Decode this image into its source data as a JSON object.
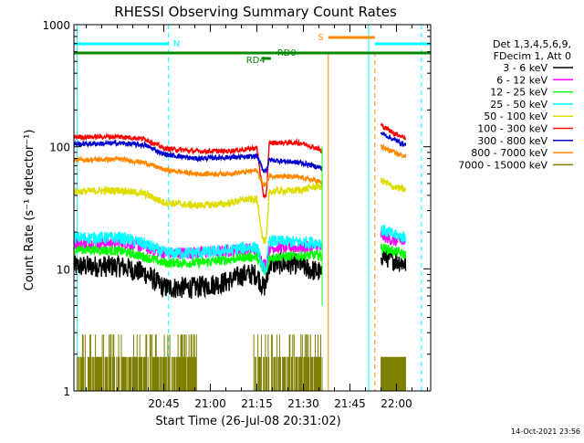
{
  "chart_data": {
    "type": "line",
    "title": "RHESSI Observing Summary Count Rates",
    "xlabel": "Start Time (26-Jul-08 20:31:02)",
    "ylabel": "Count Rate (s⁻¹ detector⁻¹)",
    "y_scale": "log",
    "ylim": [
      1,
      1000
    ],
    "xlim_minutes": [
      -15,
      100
    ],
    "x_ticks": [
      {
        "label": "20:45",
        "t": 13.97
      },
      {
        "label": "21:00",
        "t": 28.97
      },
      {
        "label": "21:15",
        "t": 43.97
      },
      {
        "label": "21:30",
        "t": 58.97
      },
      {
        "label": "21:45",
        "t": 73.97
      },
      {
        "label": "22:00",
        "t": 88.97
      }
    ],
    "y_ticks": [
      {
        "label": "1",
        "v": 1
      },
      {
        "label": "10",
        "v": 10
      },
      {
        "label": "100",
        "v": 100
      },
      {
        "label": "1000",
        "v": 1000
      }
    ],
    "legend_header": [
      "Det 1,3,4,5,6,9,",
      "FDecim 1, Att 0"
    ],
    "legend_position": "right",
    "grid": false,
    "series": [
      {
        "name": "3 - 6 keV",
        "color": "#000000",
        "points": [
          [
            -15,
            10.5
          ],
          [
            0,
            10.5
          ],
          [
            8,
            9.2
          ],
          [
            14,
            7
          ],
          [
            24,
            7
          ],
          [
            34,
            7.8
          ],
          [
            40,
            9
          ],
          [
            44,
            9
          ],
          [
            46,
            7
          ],
          [
            47,
            7.5
          ],
          [
            48,
            11
          ],
          [
            52,
            11
          ],
          [
            58,
            11
          ],
          [
            60,
            10
          ],
          [
            64,
            9.5
          ],
          [
            65,
            8.5
          ],
          [
            84,
            13
          ],
          [
            88,
            12
          ],
          [
            92,
            11
          ]
        ]
      },
      {
        "name": "6 - 12 keV",
        "color": "#ff00ff",
        "points": [
          [
            -15,
            16
          ],
          [
            0,
            16.5
          ],
          [
            8,
            15
          ],
          [
            14,
            13.5
          ],
          [
            24,
            13.5
          ],
          [
            34,
            14
          ],
          [
            40,
            14.5
          ],
          [
            44,
            14.5
          ],
          [
            46,
            11
          ],
          [
            47,
            11
          ],
          [
            48,
            15
          ],
          [
            58,
            15
          ],
          [
            64,
            15
          ],
          [
            65,
            14.5
          ],
          [
            84,
            19
          ],
          [
            88,
            17
          ],
          [
            92,
            16.5
          ]
        ]
      },
      {
        "name": "12 - 25 keV",
        "color": "#00ff00",
        "points": [
          [
            -15,
            14.5
          ],
          [
            0,
            14
          ],
          [
            8,
            12.5
          ],
          [
            14,
            11.2
          ],
          [
            24,
            11.2
          ],
          [
            34,
            11.8
          ],
          [
            40,
            12.5
          ],
          [
            44,
            12.5
          ],
          [
            46,
            9.5
          ],
          [
            47,
            9.5
          ],
          [
            48,
            12.5
          ],
          [
            58,
            12.8
          ],
          [
            64,
            13
          ],
          [
            65,
            12.5
          ],
          [
            84,
            15
          ],
          [
            88,
            14
          ],
          [
            92,
            13
          ]
        ]
      },
      {
        "name": "25 - 50 keV",
        "color": "#00ffff",
        "points": [
          [
            -15,
            18
          ],
          [
            0,
            18
          ],
          [
            8,
            16
          ],
          [
            14,
            13.5
          ],
          [
            24,
            13.5
          ],
          [
            34,
            14
          ],
          [
            40,
            15
          ],
          [
            44,
            15
          ],
          [
            46,
            10
          ],
          [
            47,
            10
          ],
          [
            48,
            17
          ],
          [
            58,
            16.5
          ],
          [
            64,
            16.5
          ],
          [
            65,
            16
          ],
          [
            84,
            21
          ],
          [
            88,
            19
          ],
          [
            92,
            18
          ]
        ]
      },
      {
        "name": "50 - 100 keV",
        "color": "#dddd00",
        "points": [
          [
            -15,
            43
          ],
          [
            0,
            44
          ],
          [
            8,
            41
          ],
          [
            14,
            35
          ],
          [
            24,
            33
          ],
          [
            34,
            34
          ],
          [
            40,
            37
          ],
          [
            44,
            37
          ],
          [
            46,
            17
          ],
          [
            47,
            17
          ],
          [
            48,
            43
          ],
          [
            58,
            44
          ],
          [
            64,
            48
          ],
          [
            65,
            45
          ],
          [
            84,
            53
          ],
          [
            88,
            47
          ],
          [
            92,
            44
          ]
        ]
      },
      {
        "name": "100 - 300 keV",
        "color": "#ff0000",
        "points": [
          [
            -15,
            120
          ],
          [
            0,
            121
          ],
          [
            8,
            116
          ],
          [
            14,
            97
          ],
          [
            24,
            92
          ],
          [
            34,
            92
          ],
          [
            40,
            95
          ],
          [
            44,
            98
          ],
          [
            46,
            40
          ],
          [
            47,
            40
          ],
          [
            48,
            108
          ],
          [
            58,
            108
          ],
          [
            64,
            96
          ],
          [
            65,
            90
          ],
          [
            84,
            150
          ],
          [
            88,
            130
          ],
          [
            92,
            118
          ]
        ]
      },
      {
        "name": "300 - 800 keV",
        "color": "#0000cc",
        "points": [
          [
            -15,
            105
          ],
          [
            0,
            107
          ],
          [
            8,
            103
          ],
          [
            14,
            87
          ],
          [
            24,
            80
          ],
          [
            34,
            82
          ],
          [
            40,
            82
          ],
          [
            44,
            84
          ],
          [
            46,
            64
          ],
          [
            47,
            64
          ],
          [
            48,
            78
          ],
          [
            58,
            74
          ],
          [
            64,
            68
          ],
          [
            65,
            66
          ],
          [
            84,
            130
          ],
          [
            88,
            115
          ],
          [
            92,
            103
          ]
        ]
      },
      {
        "name": "800 - 7000 keV",
        "color": "#ff8800",
        "points": [
          [
            -15,
            78
          ],
          [
            0,
            79
          ],
          [
            8,
            74
          ],
          [
            14,
            65
          ],
          [
            24,
            60
          ],
          [
            34,
            60
          ],
          [
            40,
            62
          ],
          [
            44,
            64
          ],
          [
            46,
            49
          ],
          [
            47,
            49
          ],
          [
            48,
            58
          ],
          [
            58,
            56
          ],
          [
            64,
            52
          ],
          [
            65,
            50
          ],
          [
            84,
            100
          ],
          [
            88,
            90
          ],
          [
            92,
            83
          ]
        ]
      },
      {
        "name": "7000 - 15000 keV",
        "color": "#808000",
        "points": []
      }
    ],
    "annotations": [
      {
        "label": "N",
        "color": "#00ffff"
      },
      {
        "label": "S",
        "color": "#ff8800"
      },
      {
        "label": "RD0",
        "color": "#008800"
      },
      {
        "label": "RD4",
        "color": "#008800"
      }
    ],
    "footer_date": "14-Oct-2021 23:56"
  }
}
